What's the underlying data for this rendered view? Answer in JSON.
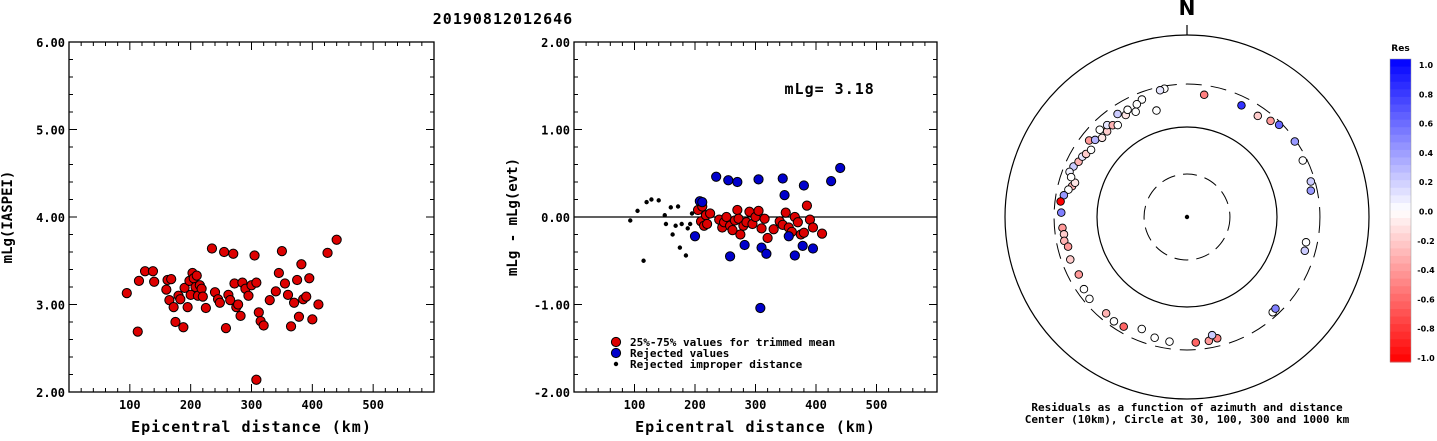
{
  "figure_title": "20190812012646",
  "chart_data": [
    {
      "type": "scatter",
      "ylabel": "mLg(IASPEI)",
      "xlabel": "Epicentral distance (km)",
      "xlim": [
        0,
        600
      ],
      "ylim": [
        2.0,
        6.0
      ],
      "xticks": [
        "100",
        "200",
        "300",
        "400",
        "500"
      ],
      "yticks": [
        "2.00",
        "3.00",
        "4.00",
        "5.00",
        "6.00"
      ],
      "series": [
        {
          "color": "#dd0000",
          "points": [
            [
              95,
              3.13
            ],
            [
              113,
              2.69
            ],
            [
              115,
              3.27
            ],
            [
              125,
              3.38
            ],
            [
              138,
              3.38
            ],
            [
              140,
              3.26
            ],
            [
              160,
              3.17
            ],
            [
              162,
              3.28
            ],
            [
              165,
              3.05
            ],
            [
              168,
              3.29
            ],
            [
              172,
              2.97
            ],
            [
              175,
              2.8
            ],
            [
              180,
              3.1
            ],
            [
              183,
              3.06
            ],
            [
              188,
              2.74
            ],
            [
              190,
              3.19
            ],
            [
              195,
              2.97
            ],
            [
              198,
              3.27
            ],
            [
              200,
              3.11
            ],
            [
              203,
              3.36
            ],
            [
              205,
              3.3
            ],
            [
              208,
              3.2
            ],
            [
              210,
              3.33
            ],
            [
              212,
              3.1
            ],
            [
              215,
              3.22
            ],
            [
              218,
              3.18
            ],
            [
              220,
              3.09
            ],
            [
              225,
              2.96
            ],
            [
              235,
              3.64
            ],
            [
              240,
              3.14
            ],
            [
              245,
              3.06
            ],
            [
              248,
              3.02
            ],
            [
              255,
              3.6
            ],
            [
              258,
              2.73
            ],
            [
              262,
              3.11
            ],
            [
              265,
              3.05
            ],
            [
              270,
              3.58
            ],
            [
              272,
              3.24
            ],
            [
              275,
              2.97
            ],
            [
              278,
              3.0
            ],
            [
              282,
              2.87
            ],
            [
              285,
              3.25
            ],
            [
              290,
              3.18
            ],
            [
              295,
              3.1
            ],
            [
              300,
              3.22
            ],
            [
              305,
              3.56
            ],
            [
              308,
              3.25
            ],
            [
              312,
              2.91
            ],
            [
              315,
              2.81
            ],
            [
              320,
              2.76
            ],
            [
              330,
              3.05
            ],
            [
              340,
              3.15
            ],
            [
              345,
              3.36
            ],
            [
              350,
              3.61
            ],
            [
              355,
              3.24
            ],
            [
              360,
              3.11
            ],
            [
              365,
              2.75
            ],
            [
              370,
              3.02
            ],
            [
              375,
              3.28
            ],
            [
              378,
              2.86
            ],
            [
              382,
              3.46
            ],
            [
              385,
              3.06
            ],
            [
              390,
              3.09
            ],
            [
              395,
              3.3
            ],
            [
              400,
              2.83
            ],
            [
              410,
              3.0
            ],
            [
              425,
              3.59
            ],
            [
              440,
              3.74
            ],
            [
              308,
              2.14
            ]
          ]
        }
      ]
    },
    {
      "type": "scatter",
      "ylabel": "mLg - mLg(evt)",
      "xlabel": "Epicentral distance (km)",
      "xlim": [
        0,
        600
      ],
      "ylim": [
        -2.0,
        2.0
      ],
      "xticks": [
        "100",
        "200",
        "300",
        "400",
        "500"
      ],
      "yticks": [
        "-2.00",
        "-1.00",
        "0.00",
        "1.00",
        "2.00"
      ],
      "annotation": "mLg= 3.18",
      "reference_line": 0.0,
      "series": [
        {
          "name": "25%-75% values for trimmed mean",
          "color": "#dd0000",
          "points": [
            [
              205,
              0.08
            ],
            [
              210,
              -0.05
            ],
            [
              212,
              0.12
            ],
            [
              215,
              -0.1
            ],
            [
              218,
              0.02
            ],
            [
              220,
              -0.08
            ],
            [
              225,
              0.04
            ],
            [
              240,
              -0.03
            ],
            [
              245,
              -0.12
            ],
            [
              248,
              -0.06
            ],
            [
              252,
              0.0
            ],
            [
              258,
              -0.1
            ],
            [
              262,
              -0.15
            ],
            [
              266,
              -0.04
            ],
            [
              270,
              0.08
            ],
            [
              272,
              -0.02
            ],
            [
              275,
              -0.2
            ],
            [
              280,
              -0.1
            ],
            [
              285,
              -0.06
            ],
            [
              290,
              0.06
            ],
            [
              295,
              -0.08
            ],
            [
              300,
              0.0
            ],
            [
              305,
              0.07
            ],
            [
              310,
              -0.13
            ],
            [
              315,
              -0.02
            ],
            [
              320,
              -0.24
            ],
            [
              330,
              -0.14
            ],
            [
              340,
              -0.05
            ],
            [
              345,
              -0.09
            ],
            [
              350,
              0.05
            ],
            [
              355,
              -0.12
            ],
            [
              360,
              -0.17
            ],
            [
              365,
              0.0
            ],
            [
              370,
              -0.06
            ],
            [
              375,
              -0.2
            ],
            [
              380,
              -0.18
            ],
            [
              385,
              0.13
            ],
            [
              390,
              -0.03
            ],
            [
              395,
              -0.12
            ],
            [
              410,
              -0.19
            ]
          ]
        },
        {
          "name": "Rejected values",
          "color": "#0000cc",
          "points": [
            [
              200,
              -0.22
            ],
            [
              208,
              0.18
            ],
            [
              212,
              0.17
            ],
            [
              235,
              0.46
            ],
            [
              255,
              0.42
            ],
            [
              258,
              -0.45
            ],
            [
              270,
              0.4
            ],
            [
              282,
              -0.32
            ],
            [
              305,
              0.43
            ],
            [
              310,
              -0.35
            ],
            [
              318,
              -0.42
            ],
            [
              345,
              0.44
            ],
            [
              348,
              0.25
            ],
            [
              355,
              -0.22
            ],
            [
              365,
              -0.44
            ],
            [
              378,
              -0.33
            ],
            [
              380,
              0.36
            ],
            [
              395,
              -0.36
            ],
            [
              425,
              0.41
            ],
            [
              440,
              0.56
            ],
            [
              308,
              -1.04
            ]
          ]
        },
        {
          "name": "Rejected improper distance",
          "color": "#000000",
          "points": [
            [
              93,
              -0.04
            ],
            [
              105,
              0.07
            ],
            [
              115,
              -0.5
            ],
            [
              120,
              0.17
            ],
            [
              128,
              0.2
            ],
            [
              140,
              0.19
            ],
            [
              150,
              0.02
            ],
            [
              152,
              -0.08
            ],
            [
              160,
              0.11
            ],
            [
              163,
              -0.2
            ],
            [
              168,
              -0.1
            ],
            [
              172,
              0.12
            ],
            [
              175,
              -0.35
            ],
            [
              178,
              -0.08
            ],
            [
              185,
              -0.44
            ],
            [
              188,
              -0.13
            ],
            [
              192,
              -0.08
            ],
            [
              195,
              0.04
            ]
          ]
        }
      ]
    },
    {
      "type": "scatter",
      "subtype": "polar",
      "north_label": "N",
      "caption_lines": [
        "Residuals as a function of azimuth and distance",
        "Center (10km), Circle at 30, 100, 300 and 1000 km"
      ],
      "rings_km": [
        30,
        100,
        300,
        1000
      ],
      "points_az_dist_res": [
        [
          -66,
          240,
          0.2
        ],
        [
          -69,
          250,
          0.05
        ],
        [
          -63,
          225,
          -0.3
        ],
        [
          -60,
          220,
          0.1
        ],
        [
          -58,
          210,
          -0.2
        ],
        [
          -55,
          200,
          0.0
        ],
        [
          -52,
          240,
          -0.4
        ],
        [
          -50,
          215,
          0.3
        ],
        [
          -47,
          195,
          -0.1
        ],
        [
          -45,
          235,
          0.0
        ],
        [
          -43,
          200,
          -0.2
        ],
        [
          -41,
          225,
          0.1
        ],
        [
          -39,
          205,
          -0.3
        ],
        [
          -37,
          190,
          0.0
        ],
        [
          -34,
          240,
          0.2
        ],
        [
          -31,
          210,
          -0.1
        ],
        [
          -29,
          230,
          0.0
        ],
        [
          -26,
          200,
          0.0
        ],
        [
          -21,
          250,
          0.0
        ],
        [
          -24,
          235,
          0.0
        ],
        [
          -75,
          210,
          -0.3
        ],
        [
          -73,
          200,
          -0.1
        ],
        [
          -77,
          225,
          0.0
        ],
        [
          -71,
          230,
          0.0
        ],
        [
          -80,
          245,
          0.4
        ],
        [
          -83,
          260,
          -1.0
        ],
        [
          -88,
          250,
          0.5
        ],
        [
          -95,
          245,
          -0.4
        ],
        [
          -98,
          240,
          -0.2
        ],
        [
          -101,
          245,
          -0.3
        ],
        [
          -104,
          230,
          -0.4
        ],
        [
          -110,
          240,
          -0.2
        ],
        [
          -118,
          230,
          -0.4
        ],
        [
          -125,
          250,
          0.0
        ],
        [
          -130,
          260,
          0.0
        ],
        [
          -140,
          250,
          -0.3
        ],
        [
          -145,
          260,
          0.0
        ],
        [
          -150,
          255,
          -0.6
        ],
        [
          -158,
          220,
          0.0
        ],
        [
          -165,
          245,
          0.0
        ],
        [
          -172,
          250,
          0.0
        ],
        [
          176,
          250,
          -0.6
        ],
        [
          170,
          250,
          -0.4
        ],
        [
          166,
          245,
          -0.5
        ],
        [
          168,
          220,
          0.2
        ],
        [
          138,
          265,
          0.0
        ],
        [
          136,
          260,
          0.5
        ],
        [
          106,
          230,
          0.2
        ],
        [
          102,
          225,
          0.0
        ],
        [
          78,
          255,
          0.4
        ],
        [
          74,
          270,
          0.2
        ],
        [
          64,
          270,
          0.0
        ],
        [
          55,
          290,
          0.4
        ],
        [
          45,
          280,
          0.6
        ],
        [
          41,
          260,
          -0.4
        ],
        [
          35,
          235,
          -0.2
        ],
        [
          26,
          240,
          0.8
        ],
        [
          8,
          235,
          -0.5
        ],
        [
          -10,
          280,
          0.0
        ],
        [
          -12,
          275,
          0.1
        ],
        [
          -16,
          170,
          0.0
        ]
      ],
      "colorbar": {
        "title": "Res",
        "labels": [
          "1.0",
          "0.8",
          "0.6",
          "0.4",
          "0.2",
          "0.0",
          "-0.2",
          "-0.4",
          "-0.6",
          "-0.8",
          "-1.0"
        ]
      }
    }
  ]
}
